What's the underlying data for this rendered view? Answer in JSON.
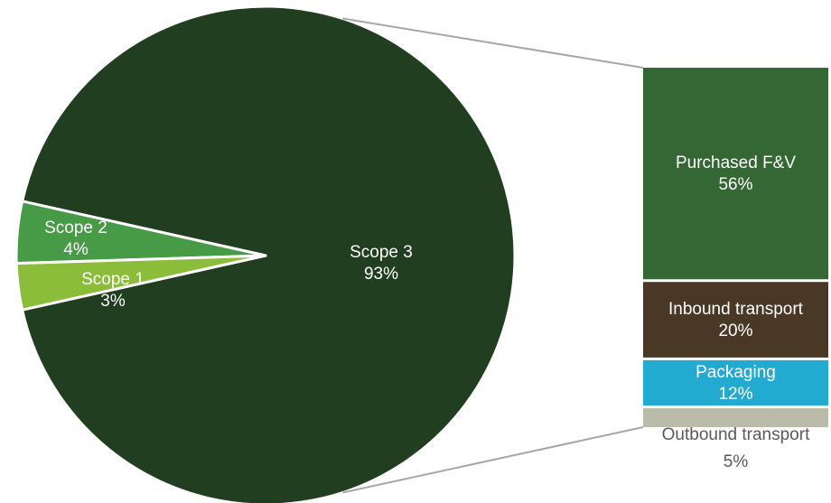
{
  "chart_data": {
    "type": "bar-of-pie",
    "pie": {
      "categories": [
        "Scope 3",
        "Scope 2",
        "Scope 1"
      ],
      "values": [
        93,
        4,
        3
      ],
      "labels": [
        "93%",
        "4%",
        "3%"
      ],
      "colors": [
        "#213f20",
        "#479a46",
        "#8cbd3a"
      ]
    },
    "bar": {
      "source_slice": "Scope 3",
      "categories": [
        "Purchased F&V",
        "Inbound transport",
        "Packaging",
        "Outbound transport"
      ],
      "values": [
        56,
        20,
        12,
        5
      ],
      "labels": [
        "56%",
        "20%",
        "12%",
        "5%"
      ],
      "colors": [
        "#346733",
        "#4a3826",
        "#22aad1",
        "#bbbbaa"
      ]
    },
    "label_colors": {
      "inside": "#ffffff",
      "outside": "#595959"
    },
    "connector_color": "#a6a6a6"
  }
}
